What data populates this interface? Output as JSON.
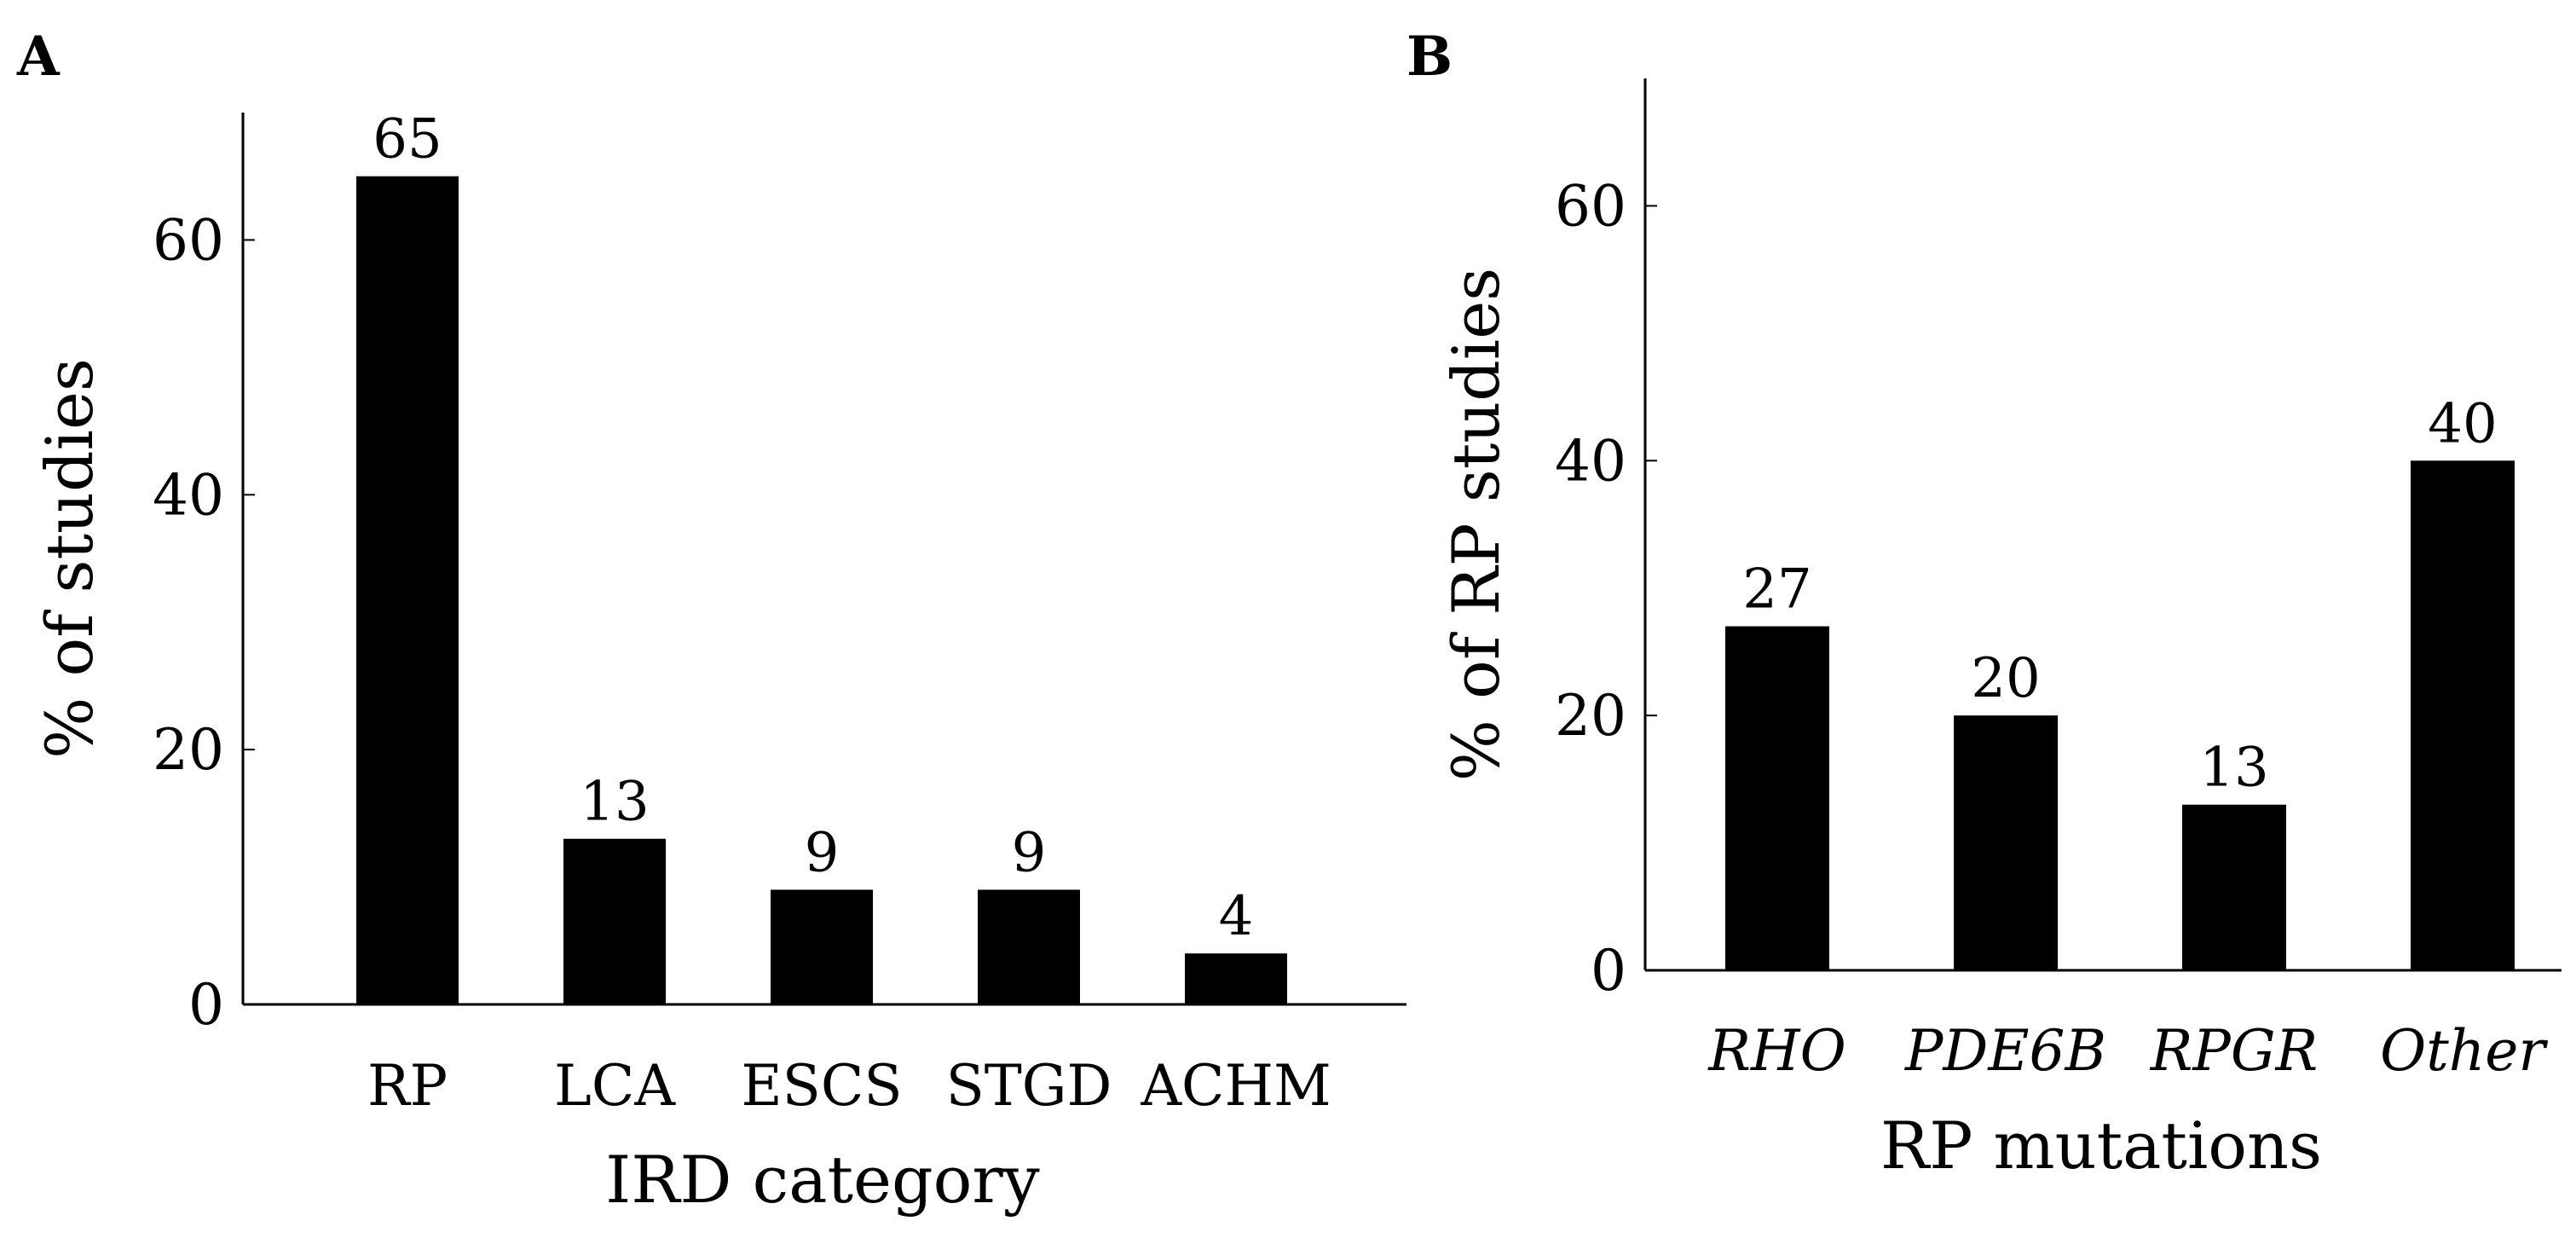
{
  "chart_data": [
    {
      "panel_label": "A",
      "type": "bar",
      "title": "",
      "xlabel": "IRD category",
      "ylabel": "% of studies",
      "ylim": [
        0,
        70
      ],
      "yticks": [
        0,
        20,
        40,
        60
      ],
      "italic_categories": false,
      "categories": [
        "RP",
        "LCA",
        "ESCS",
        "STGD",
        "ACHM"
      ],
      "values": [
        65,
        13,
        9,
        9,
        4
      ],
      "color": "#000000"
    },
    {
      "panel_label": "B",
      "type": "bar",
      "title": "",
      "xlabel": "RP mutations",
      "ylabel": "% of RP studies",
      "ylim": [
        0,
        70
      ],
      "yticks": [
        0,
        20,
        40,
        60
      ],
      "italic_categories": true,
      "categories": [
        "RHO",
        "PDE6B",
        "RPGR",
        "Other"
      ],
      "values": [
        27,
        20,
        13,
        40
      ],
      "color": "#000000"
    }
  ]
}
